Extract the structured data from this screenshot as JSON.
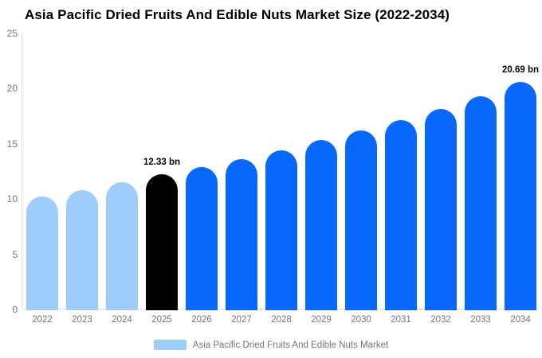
{
  "title": "Asia Pacific Dried Fruits And Edible Nuts Market Size (2022-2034)",
  "chart_data": {
    "type": "bar",
    "title": "Asia Pacific Dried Fruits And Edible Nuts Market Size (2022-2034)",
    "unit": "bn",
    "categories": [
      "2022",
      "2023",
      "2024",
      "2025",
      "2026",
      "2027",
      "2028",
      "2029",
      "2030",
      "2031",
      "2032",
      "2033",
      "2034"
    ],
    "values": [
      10.3,
      10.9,
      11.6,
      12.33,
      13.0,
      13.7,
      14.5,
      15.4,
      16.3,
      17.2,
      18.2,
      19.4,
      20.69
    ],
    "bar_colors": [
      "#9FCDFB",
      "#9FCDFB",
      "#9FCDFB",
      "#000000",
      "#0768FB",
      "#0768FB",
      "#0768FB",
      "#0768FB",
      "#0768FB",
      "#0768FB",
      "#0768FB",
      "#0768FB",
      "#0768FB"
    ],
    "annotations": [
      {
        "category": "2025",
        "label": "12.33 bn"
      },
      {
        "category": "2034",
        "label": "20.69 bn"
      }
    ],
    "xlabel": "",
    "ylabel": "",
    "ylim": [
      0,
      25
    ],
    "yticks": [
      0,
      5,
      10,
      15,
      20,
      25
    ],
    "grid": false,
    "legend_position": "bottom"
  },
  "legend": {
    "label": "Asia Pacific Dried Fruits And Edible Nuts Market",
    "swatch_color": "#9FCDFB"
  },
  "colors": {
    "historical_bar": "#9FCDFB",
    "base_year_bar": "#000000",
    "forecast_bar": "#0768FB",
    "axis_line": "#e2e2e2",
    "tick_text": "#757575",
    "title_text": "#000000"
  }
}
